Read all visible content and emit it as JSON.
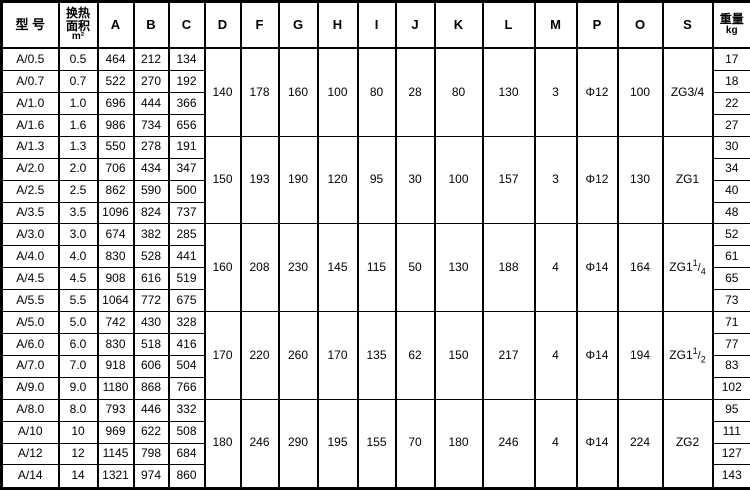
{
  "table": {
    "headers": [
      {
        "label": "型 号"
      },
      {
        "lines": [
          "换热",
          "面积"
        ],
        "unit": "m²"
      },
      {
        "label": "A"
      },
      {
        "label": "B"
      },
      {
        "label": "C"
      },
      {
        "label": "D"
      },
      {
        "label": "F"
      },
      {
        "label": "G"
      },
      {
        "label": "H"
      },
      {
        "label": "I"
      },
      {
        "label": "J"
      },
      {
        "label": "K"
      },
      {
        "label": "L"
      },
      {
        "label": "M"
      },
      {
        "label": "P"
      },
      {
        "label": "O"
      },
      {
        "label": "S"
      },
      {
        "lines": [
          "重量"
        ],
        "unit": "kg"
      }
    ],
    "groups": [
      {
        "shared": {
          "d": "140",
          "f": "178",
          "g": "160",
          "h": "100",
          "i": "80",
          "j": "28",
          "k": "80",
          "l": "130",
          "m": "3",
          "p": "Φ12",
          "o": "100",
          "s": {
            "text": "ZG3/4"
          }
        },
        "rows": [
          {
            "model": "A/0.5",
            "area": "0.5",
            "a": "464",
            "b": "212",
            "c": "134",
            "weight": "17"
          },
          {
            "model": "A/0.7",
            "area": "0.7",
            "a": "522",
            "b": "270",
            "c": "192",
            "weight": "18"
          },
          {
            "model": "A/1.0",
            "area": "1.0",
            "a": "696",
            "b": "444",
            "c": "366",
            "weight": "22"
          },
          {
            "model": "A/1.6",
            "area": "1.6",
            "a": "986",
            "b": "734",
            "c": "656",
            "weight": "27"
          }
        ]
      },
      {
        "shared": {
          "d": "150",
          "f": "193",
          "g": "190",
          "h": "120",
          "i": "95",
          "j": "30",
          "k": "100",
          "l": "157",
          "m": "3",
          "p": "Φ12",
          "o": "130",
          "s": {
            "text": "ZG1"
          }
        },
        "rows": [
          {
            "model": "A/1.3",
            "area": "1.3",
            "a": "550",
            "b": "278",
            "c": "191",
            "weight": "30"
          },
          {
            "model": "A/2.0",
            "area": "2.0",
            "a": "706",
            "b": "434",
            "c": "347",
            "weight": "34"
          },
          {
            "model": "A/2.5",
            "area": "2.5",
            "a": "862",
            "b": "590",
            "c": "500",
            "weight": "40"
          },
          {
            "model": "A/3.5",
            "area": "3.5",
            "a": "1096",
            "b": "824",
            "c": "737",
            "weight": "48"
          }
        ]
      },
      {
        "shared": {
          "d": "160",
          "f": "208",
          "g": "230",
          "h": "145",
          "i": "115",
          "j": "50",
          "k": "130",
          "l": "188",
          "m": "4",
          "p": "Φ14",
          "o": "164",
          "s": {
            "text": "ZG1",
            "sup": "1",
            "slash": "/",
            "sub": "4"
          }
        },
        "rows": [
          {
            "model": "A/3.0",
            "area": "3.0",
            "a": "674",
            "b": "382",
            "c": "285",
            "weight": "52"
          },
          {
            "model": "A/4.0",
            "area": "4.0",
            "a": "830",
            "b": "528",
            "c": "441",
            "weight": "61"
          },
          {
            "model": "A/4.5",
            "area": "4.5",
            "a": "908",
            "b": "616",
            "c": "519",
            "weight": "65"
          },
          {
            "model": "A/5.5",
            "area": "5.5",
            "a": "1064",
            "b": "772",
            "c": "675",
            "weight": "73"
          }
        ]
      },
      {
        "shared": {
          "d": "170",
          "f": "220",
          "g": "260",
          "h": "170",
          "i": "135",
          "j": "62",
          "k": "150",
          "l": "217",
          "m": "4",
          "p": "Φ14",
          "o": "194",
          "s": {
            "text": "ZG1",
            "sup": "1",
            "slash": "/",
            "sub": "2"
          }
        },
        "rows": [
          {
            "model": "A/5.0",
            "area": "5.0",
            "a": "742",
            "b": "430",
            "c": "328",
            "weight": "71"
          },
          {
            "model": "A/6.0",
            "area": "6.0",
            "a": "830",
            "b": "518",
            "c": "416",
            "weight": "77"
          },
          {
            "model": "A/7.0",
            "area": "7.0",
            "a": "918",
            "b": "606",
            "c": "504",
            "weight": "83"
          },
          {
            "model": "A/9.0",
            "area": "9.0",
            "a": "1180",
            "b": "868",
            "c": "766",
            "weight": "102"
          }
        ]
      },
      {
        "shared": {
          "d": "180",
          "f": "246",
          "g": "290",
          "h": "195",
          "i": "155",
          "j": "70",
          "k": "180",
          "l": "246",
          "m": "4",
          "p": "Φ14",
          "o": "224",
          "s": {
            "text": "ZG2"
          }
        },
        "rows": [
          {
            "model": "A/8.0",
            "area": "8.0",
            "a": "793",
            "b": "446",
            "c": "332",
            "weight": "95"
          },
          {
            "model": "A/10",
            "area": "10",
            "a": "969",
            "b": "622",
            "c": "508",
            "weight": "111"
          },
          {
            "model": "A/12",
            "area": "12",
            "a": "1145",
            "b": "798",
            "c": "684",
            "weight": "127"
          },
          {
            "model": "A/14",
            "area": "14",
            "a": "1321",
            "b": "974",
            "c": "860",
            "weight": "143"
          }
        ]
      }
    ]
  }
}
